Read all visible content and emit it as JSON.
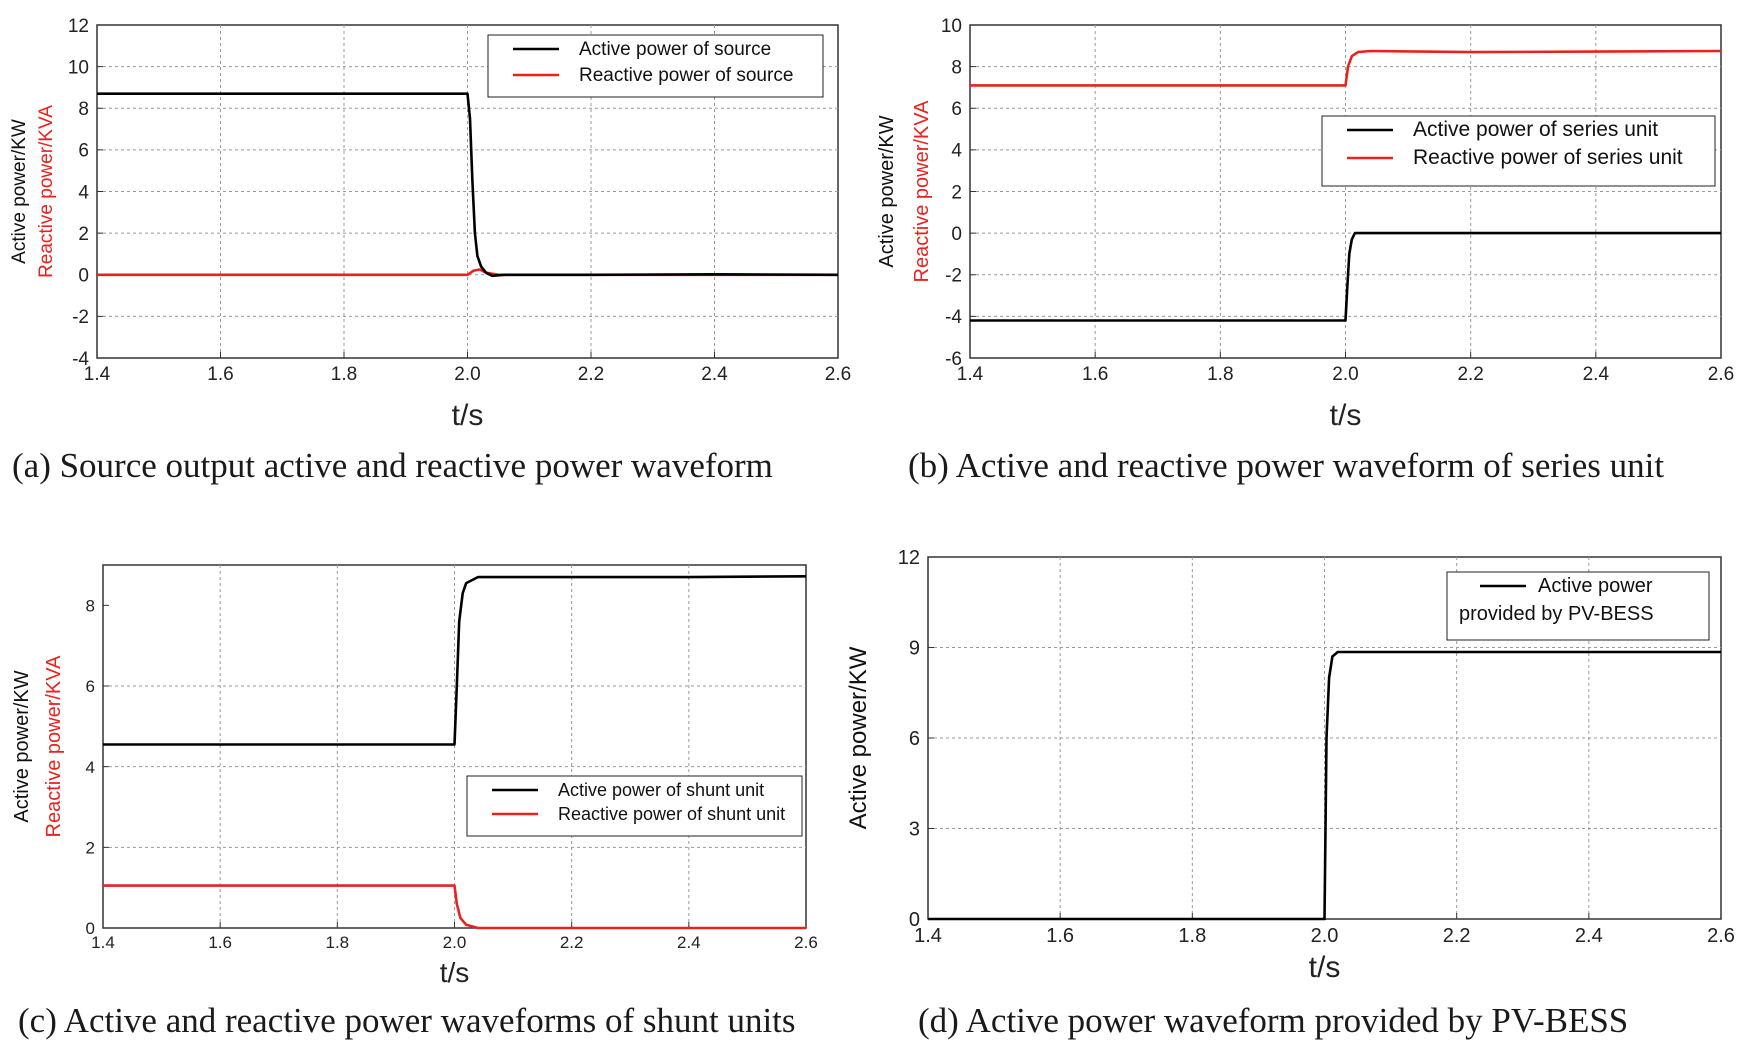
{
  "colors": {
    "active": "#000000",
    "reactive": "#e8231f",
    "grid": "#9a9a9a"
  },
  "chart_data": [
    {
      "id": "a",
      "type": "line",
      "caption": "(a) Source output active and reactive power waveform",
      "xlabel": "t/s",
      "ylabel_active": "Active power/KW",
      "ylabel_reactive": "Reactive power/KVA",
      "xlim": [
        1.4,
        2.6
      ],
      "ylim": [
        -4,
        12
      ],
      "xticks": [
        "1.4",
        "1.6",
        "1.8",
        "2.0",
        "2.2",
        "2.4",
        "2.6"
      ],
      "yticks": [
        "-4",
        "-2",
        "0",
        "2",
        "4",
        "6",
        "8",
        "10",
        "12"
      ],
      "legend_position": "top-right",
      "series": [
        {
          "name": "Active power of source",
          "color_key": "active",
          "points": [
            [
              1.4,
              8.7
            ],
            [
              2.0,
              8.7
            ],
            [
              2.004,
              7.5
            ],
            [
              2.008,
              4.5
            ],
            [
              2.012,
              2.0
            ],
            [
              2.016,
              0.9
            ],
            [
              2.022,
              0.4
            ],
            [
              2.03,
              0.1
            ],
            [
              2.04,
              -0.05
            ],
            [
              2.06,
              0.0
            ],
            [
              2.2,
              0.0
            ],
            [
              2.4,
              0.02
            ],
            [
              2.6,
              0.0
            ]
          ]
        },
        {
          "name": "Reactive power of source",
          "color_key": "reactive",
          "points": [
            [
              1.4,
              0.0
            ],
            [
              2.0,
              0.0
            ],
            [
              2.01,
              0.2
            ],
            [
              2.02,
              0.25
            ],
            [
              2.03,
              0.1
            ],
            [
              2.05,
              0.0
            ],
            [
              2.6,
              0.0
            ]
          ]
        }
      ]
    },
    {
      "id": "b",
      "type": "line",
      "caption": "(b) Active and reactive power waveform of series unit",
      "xlabel": "t/s",
      "ylabel_active": "Active power/KW",
      "ylabel_reactive": "Reactive power/KVA",
      "xlim": [
        1.4,
        2.6
      ],
      "ylim": [
        -6,
        10
      ],
      "xticks": [
        "1.4",
        "1.6",
        "1.8",
        "2.0",
        "2.2",
        "2.4",
        "2.6"
      ],
      "yticks": [
        "-6",
        "-4",
        "-2",
        "0",
        "2",
        "4",
        "6",
        "8",
        "10"
      ],
      "legend_position": "middle-right",
      "series": [
        {
          "name": "Active power of series unit",
          "color_key": "active",
          "points": [
            [
              1.4,
              -4.2
            ],
            [
              2.0,
              -4.2
            ],
            [
              2.003,
              -2.5
            ],
            [
              2.006,
              -1.0
            ],
            [
              2.01,
              -0.3
            ],
            [
              2.015,
              0.0
            ],
            [
              2.6,
              0.0
            ]
          ]
        },
        {
          "name": "Reactive power of series unit",
          "color_key": "reactive",
          "points": [
            [
              1.4,
              7.1
            ],
            [
              2.0,
              7.1
            ],
            [
              2.004,
              8.0
            ],
            [
              2.01,
              8.5
            ],
            [
              2.02,
              8.7
            ],
            [
              2.04,
              8.75
            ],
            [
              2.2,
              8.7
            ],
            [
              2.4,
              8.72
            ],
            [
              2.6,
              8.75
            ]
          ]
        }
      ]
    },
    {
      "id": "c",
      "type": "line",
      "caption": "(c) Active and reactive power waveforms of shunt units",
      "xlabel": "t/s",
      "ylabel_active": "Active power/KW",
      "ylabel_reactive": "Reactive power/KVA",
      "xlim": [
        1.4,
        2.6
      ],
      "ylim": [
        0,
        9
      ],
      "xticks": [
        "1.4",
        "1.6",
        "1.8",
        "2.0",
        "2.2",
        "2.4",
        "2.6"
      ],
      "yticks": [
        "0",
        "2",
        "4",
        "6",
        "8"
      ],
      "legend_position": "bottom-right",
      "series": [
        {
          "name": "Active power of shunt unit",
          "color_key": "active",
          "points": [
            [
              1.4,
              4.55
            ],
            [
              2.0,
              4.55
            ],
            [
              2.004,
              6.0
            ],
            [
              2.008,
              7.6
            ],
            [
              2.014,
              8.3
            ],
            [
              2.02,
              8.55
            ],
            [
              2.04,
              8.7
            ],
            [
              2.2,
              8.7
            ],
            [
              2.4,
              8.7
            ],
            [
              2.6,
              8.72
            ]
          ]
        },
        {
          "name": "Reactive power of shunt unit",
          "color_key": "reactive",
          "points": [
            [
              1.4,
              1.05
            ],
            [
              1.6,
              1.05
            ],
            [
              2.0,
              1.05
            ],
            [
              2.004,
              0.6
            ],
            [
              2.01,
              0.25
            ],
            [
              2.02,
              0.08
            ],
            [
              2.04,
              0.0
            ],
            [
              2.6,
              0.0
            ]
          ]
        }
      ]
    },
    {
      "id": "d",
      "type": "line",
      "caption": "(d) Active power waveform provided by PV-BESS",
      "xlabel": "t/s",
      "ylabel_active": "Active power/KW",
      "ylabel_reactive": "",
      "xlim": [
        1.4,
        2.6
      ],
      "ylim": [
        0,
        12
      ],
      "xticks": [
        "1.4",
        "1.6",
        "1.8",
        "2.0",
        "2.2",
        "2.4",
        "2.6"
      ],
      "yticks": [
        "0",
        "3",
        "6",
        "9",
        "12"
      ],
      "legend_position": "top-right",
      "series": [
        {
          "name": "Active power provided by PV-BESS",
          "legend_lines": [
            "Active power",
            "provided by PV-BESS"
          ],
          "color_key": "active",
          "points": [
            [
              1.4,
              0.0
            ],
            [
              2.0,
              0.0
            ],
            [
              2.003,
              6.0
            ],
            [
              2.007,
              8.0
            ],
            [
              2.012,
              8.7
            ],
            [
              2.02,
              8.85
            ],
            [
              2.2,
              8.85
            ],
            [
              2.6,
              8.85
            ]
          ]
        }
      ]
    }
  ]
}
